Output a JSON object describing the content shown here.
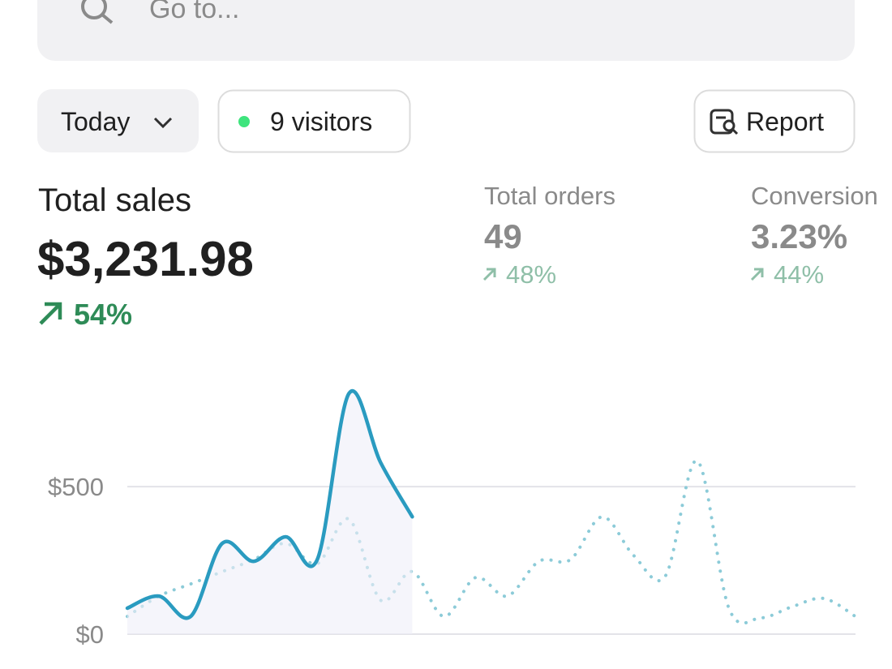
{
  "search": {
    "placeholder": "Go to..."
  },
  "filters": {
    "period": "Today",
    "visitors": "9 visitors"
  },
  "actions": {
    "report": "Report"
  },
  "metrics": [
    {
      "label": "Total sales",
      "value": "$3,231.98",
      "change": "54%"
    },
    {
      "label": "Total orders",
      "value": "49",
      "change": "48%"
    },
    {
      "label": "Conversion",
      "value": "3.23%",
      "change": "44%"
    }
  ],
  "chart_data": {
    "type": "line",
    "categories": [
      null,
      null,
      null,
      null,
      null,
      null,
      null,
      null,
      null,
      null,
      null,
      null,
      null,
      null,
      null,
      null,
      null,
      null,
      null,
      null,
      null,
      null,
      null,
      null
    ],
    "series": [
      {
        "color": "#2a9bc0",
        "style": "solid",
        "values": [
          88,
          129,
          60,
          308,
          247,
          330,
          253,
          816,
          582,
          398,
          null,
          null,
          null,
          null,
          null,
          null,
          null,
          null,
          null,
          null,
          null,
          null,
          null,
          null
        ]
      },
      {
        "color": "#8ccbd8",
        "style": "dotted",
        "values": [
          60,
          129,
          170,
          212,
          253,
          308,
          239,
          390,
          115,
          212,
          60,
          192,
          129,
          247,
          253,
          398,
          266,
          198,
          588,
          88,
          55,
          93,
          121,
          60
        ]
      }
    ],
    "ylim": [
      0,
      880
    ],
    "yticks": [
      {
        "value": 0,
        "label": "$0"
      },
      {
        "value": 500,
        "label": "$500"
      }
    ],
    "grid": true
  }
}
